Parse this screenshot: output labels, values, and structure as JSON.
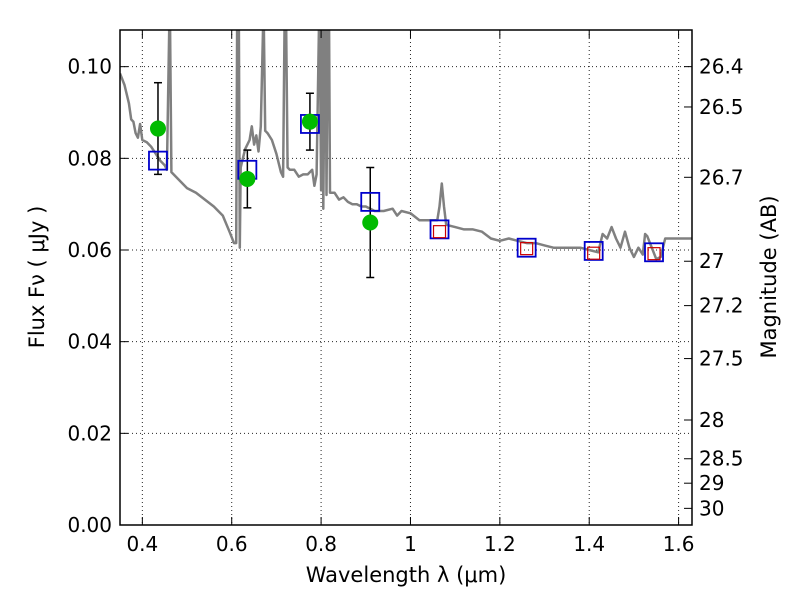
{
  "chart_data": {
    "type": "scatter",
    "xlabel": "Wavelength  λ (μm)",
    "ylabel": "Flux  Fν  ( μJy )",
    "right_ylabel": "Magnitude (AB)",
    "xlim": [
      0.35,
      1.63
    ],
    "ylim": [
      0.0,
      0.108
    ],
    "grid": true,
    "x_ticks": [
      {
        "v": 0.4,
        "label": "0.4"
      },
      {
        "v": 0.6,
        "label": "0.6"
      },
      {
        "v": 0.8,
        "label": "0.8"
      },
      {
        "v": 1.0,
        "label": "1"
      },
      {
        "v": 1.2,
        "label": "1.2"
      },
      {
        "v": 1.4,
        "label": "1.4"
      },
      {
        "v": 1.6,
        "label": "1.6"
      }
    ],
    "y_ticks": [
      {
        "v": 0.0,
        "label": "0.00"
      },
      {
        "v": 0.02,
        "label": "0.02"
      },
      {
        "v": 0.04,
        "label": "0.04"
      },
      {
        "v": 0.06,
        "label": "0.06"
      },
      {
        "v": 0.08,
        "label": "0.08"
      },
      {
        "v": 0.1,
        "label": "0.10"
      }
    ],
    "mag_ticks": [
      {
        "mag": 26.4,
        "label": "26.4"
      },
      {
        "mag": 26.5,
        "label": "26.5"
      },
      {
        "mag": 26.7,
        "label": "26.7"
      },
      {
        "mag": 27.0,
        "label": "27"
      },
      {
        "mag": 27.2,
        "label": "27.2"
      },
      {
        "mag": 27.5,
        "label": "27.5"
      },
      {
        "mag": 28.0,
        "label": "28"
      },
      {
        "mag": 28.5,
        "label": "28.5"
      },
      {
        "mag": 29.0,
        "label": "29"
      },
      {
        "mag": 30.0,
        "label": "30"
      }
    ],
    "colors": {
      "model": "#808080",
      "observed": "#00bb00",
      "model_box": "#0000cc",
      "pred_box": "#cc0000",
      "errorbar": "#000000"
    },
    "model_spectrum": [
      [
        0.35,
        0.0985
      ],
      [
        0.36,
        0.096
      ],
      [
        0.37,
        0.092
      ],
      [
        0.375,
        0.0885
      ],
      [
        0.38,
        0.088
      ],
      [
        0.385,
        0.0855
      ],
      [
        0.39,
        0.0845
      ],
      [
        0.395,
        0.0875
      ],
      [
        0.4,
        0.084
      ],
      [
        0.41,
        0.0835
      ],
      [
        0.42,
        0.0825
      ],
      [
        0.43,
        0.081
      ],
      [
        0.44,
        0.0795
      ],
      [
        0.45,
        0.0785
      ],
      [
        0.455,
        0.0775
      ],
      [
        0.46,
        0.108
      ],
      [
        0.462,
        0.108
      ],
      [
        0.465,
        0.077
      ],
      [
        0.47,
        0.0765
      ],
      [
        0.48,
        0.0755
      ],
      [
        0.5,
        0.0735
      ],
      [
        0.52,
        0.0725
      ],
      [
        0.54,
        0.071
      ],
      [
        0.56,
        0.0695
      ],
      [
        0.58,
        0.0675
      ],
      [
        0.595,
        0.064
      ],
      [
        0.605,
        0.0615
      ],
      [
        0.61,
        0.0615
      ],
      [
        0.612,
        0.108
      ],
      [
        0.616,
        0.108
      ],
      [
        0.618,
        0.0605
      ],
      [
        0.62,
        0.078
      ],
      [
        0.63,
        0.082
      ],
      [
        0.64,
        0.084
      ],
      [
        0.645,
        0.087
      ],
      [
        0.65,
        0.083
      ],
      [
        0.655,
        0.085
      ],
      [
        0.66,
        0.0815
      ],
      [
        0.665,
        0.087
      ],
      [
        0.67,
        0.108
      ],
      [
        0.672,
        0.108
      ],
      [
        0.675,
        0.086
      ],
      [
        0.68,
        0.0855
      ],
      [
        0.69,
        0.084
      ],
      [
        0.7,
        0.081
      ],
      [
        0.71,
        0.077
      ],
      [
        0.715,
        0.076
      ],
      [
        0.718,
        0.108
      ],
      [
        0.722,
        0.108
      ],
      [
        0.725,
        0.078
      ],
      [
        0.73,
        0.0775
      ],
      [
        0.74,
        0.0775
      ],
      [
        0.75,
        0.076
      ],
      [
        0.76,
        0.0765
      ],
      [
        0.77,
        0.0765
      ],
      [
        0.78,
        0.0775
      ],
      [
        0.785,
        0.074
      ],
      [
        0.79,
        0.0765
      ],
      [
        0.795,
        0.108
      ],
      [
        0.797,
        0.108
      ],
      [
        0.8,
        0.073
      ],
      [
        0.803,
        0.108
      ],
      [
        0.805,
        0.069
      ],
      [
        0.808,
        0.108
      ],
      [
        0.81,
        0.108
      ],
      [
        0.812,
        0.072
      ],
      [
        0.815,
        0.108
      ],
      [
        0.818,
        0.108
      ],
      [
        0.82,
        0.0725
      ],
      [
        0.83,
        0.0725
      ],
      [
        0.84,
        0.071
      ],
      [
        0.85,
        0.0715
      ],
      [
        0.86,
        0.0705
      ],
      [
        0.87,
        0.07
      ],
      [
        0.88,
        0.07
      ],
      [
        0.89,
        0.0695
      ],
      [
        0.9,
        0.0695
      ],
      [
        0.92,
        0.0685
      ],
      [
        0.94,
        0.0685
      ],
      [
        0.96,
        0.069
      ],
      [
        0.97,
        0.0675
      ],
      [
        0.98,
        0.0685
      ],
      [
        1.0,
        0.068
      ],
      [
        1.02,
        0.0665
      ],
      [
        1.04,
        0.0665
      ],
      [
        1.06,
        0.0665
      ],
      [
        1.065,
        0.0695
      ],
      [
        1.07,
        0.0745
      ],
      [
        1.075,
        0.0695
      ],
      [
        1.08,
        0.0655
      ],
      [
        1.1,
        0.065
      ],
      [
        1.12,
        0.0645
      ],
      [
        1.14,
        0.0645
      ],
      [
        1.16,
        0.064
      ],
      [
        1.18,
        0.0625
      ],
      [
        1.2,
        0.062
      ],
      [
        1.22,
        0.0625
      ],
      [
        1.24,
        0.062
      ],
      [
        1.26,
        0.0615
      ],
      [
        1.28,
        0.0615
      ],
      [
        1.3,
        0.061
      ],
      [
        1.32,
        0.0605
      ],
      [
        1.34,
        0.0605
      ],
      [
        1.36,
        0.0605
      ],
      [
        1.38,
        0.0605
      ],
      [
        1.4,
        0.06
      ],
      [
        1.42,
        0.0595
      ],
      [
        1.43,
        0.0635
      ],
      [
        1.44,
        0.0625
      ],
      [
        1.45,
        0.065
      ],
      [
        1.46,
        0.0625
      ],
      [
        1.47,
        0.0605
      ],
      [
        1.48,
        0.064
      ],
      [
        1.49,
        0.0605
      ],
      [
        1.5,
        0.0585
      ],
      [
        1.51,
        0.0605
      ],
      [
        1.52,
        0.059
      ],
      [
        1.525,
        0.0635
      ],
      [
        1.53,
        0.063
      ],
      [
        1.54,
        0.0605
      ],
      [
        1.55,
        0.058
      ],
      [
        1.56,
        0.0585
      ],
      [
        1.57,
        0.0625
      ],
      [
        1.58,
        0.0625
      ],
      [
        1.6,
        0.0625
      ],
      [
        1.63,
        0.0625
      ]
    ],
    "observed_points": [
      {
        "x": 0.435,
        "y": 0.0865,
        "yerr": 0.01
      },
      {
        "x": 0.635,
        "y": 0.0755,
        "yerr": 0.0063
      },
      {
        "x": 0.775,
        "y": 0.088,
        "yerr": 0.0062
      },
      {
        "x": 0.91,
        "y": 0.066,
        "yerr": 0.012
      }
    ],
    "model_boxes": [
      {
        "x": 0.435,
        "y": 0.0795
      },
      {
        "x": 0.635,
        "y": 0.0775
      },
      {
        "x": 0.775,
        "y": 0.0875
      },
      {
        "x": 0.91,
        "y": 0.0705
      },
      {
        "x": 1.065,
        "y": 0.0645
      },
      {
        "x": 1.26,
        "y": 0.0605
      },
      {
        "x": 1.41,
        "y": 0.0598
      },
      {
        "x": 1.545,
        "y": 0.0595
      }
    ],
    "predicted_boxes": [
      {
        "x": 1.065,
        "y": 0.064
      },
      {
        "x": 1.26,
        "y": 0.0603
      },
      {
        "x": 1.41,
        "y": 0.0593
      },
      {
        "x": 1.545,
        "y": 0.0592
      }
    ]
  }
}
